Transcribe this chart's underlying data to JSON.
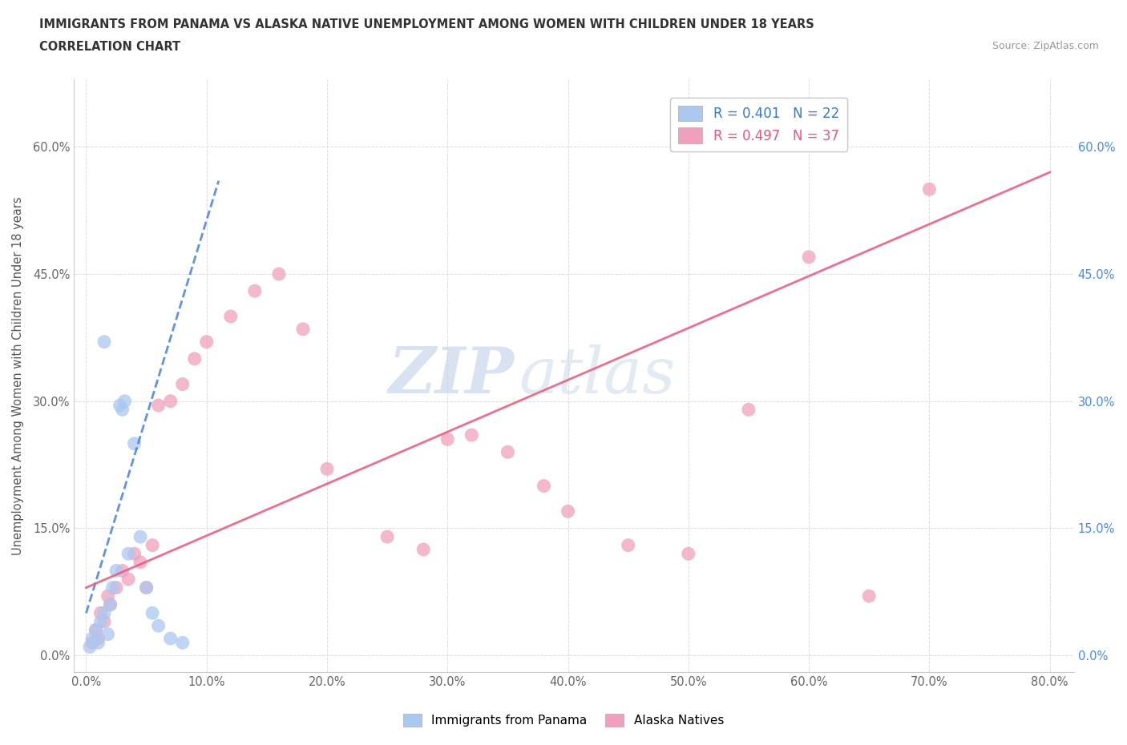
{
  "title_line1": "IMMIGRANTS FROM PANAMA VS ALASKA NATIVE UNEMPLOYMENT AMONG WOMEN WITH CHILDREN UNDER 18 YEARS",
  "title_line2": "CORRELATION CHART",
  "source_text": "Source: ZipAtlas.com",
  "xlabel_ticks": [
    "0.0%",
    "10.0%",
    "20.0%",
    "30.0%",
    "40.0%",
    "50.0%",
    "60.0%",
    "70.0%",
    "80.0%"
  ],
  "xlabel_vals": [
    0,
    10,
    20,
    30,
    40,
    50,
    60,
    70,
    80
  ],
  "ylabel_ticks": [
    "0.0%",
    "15.0%",
    "30.0%",
    "45.0%",
    "60.0%"
  ],
  "ylabel_vals": [
    0,
    15,
    30,
    45,
    60
  ],
  "right_ylabel_ticks": [
    "60.0%",
    "45.0%",
    "30.0%",
    "15.0%",
    "0.0%"
  ],
  "xlim": [
    -1,
    82
  ],
  "ylim": [
    -2,
    68
  ],
  "watermark_zip": "ZIP",
  "watermark_atlas": "atlas",
  "legend_blue_r": "R = 0.401",
  "legend_blue_n": "N = 22",
  "legend_pink_r": "R = 0.497",
  "legend_pink_n": "N = 37",
  "legend_label_blue": "Immigrants from Panama",
  "legend_label_pink": "Alaska Natives",
  "blue_scatter_x": [
    0.3,
    0.5,
    0.8,
    1.0,
    1.2,
    1.5,
    1.8,
    2.0,
    2.2,
    2.5,
    3.0,
    3.2,
    3.5,
    4.0,
    4.5,
    5.0,
    5.5,
    6.0,
    7.0,
    8.0,
    1.5,
    2.8
  ],
  "blue_scatter_y": [
    1.0,
    2.0,
    3.0,
    1.5,
    4.0,
    5.0,
    2.5,
    6.0,
    8.0,
    10.0,
    29.0,
    30.0,
    12.0,
    25.0,
    14.0,
    8.0,
    5.0,
    3.5,
    2.0,
    1.5,
    37.0,
    29.5
  ],
  "pink_scatter_x": [
    0.5,
    0.8,
    1.0,
    1.2,
    1.5,
    1.8,
    2.0,
    2.5,
    3.0,
    3.5,
    4.0,
    4.5,
    5.0,
    5.5,
    6.0,
    7.0,
    8.0,
    9.0,
    10.0,
    12.0,
    14.0,
    16.0,
    18.0,
    20.0,
    25.0,
    28.0,
    30.0,
    32.0,
    35.0,
    38.0,
    40.0,
    45.0,
    50.0,
    55.0,
    60.0,
    65.0,
    70.0
  ],
  "pink_scatter_y": [
    1.5,
    3.0,
    2.0,
    5.0,
    4.0,
    7.0,
    6.0,
    8.0,
    10.0,
    9.0,
    12.0,
    11.0,
    8.0,
    13.0,
    29.5,
    30.0,
    32.0,
    35.0,
    37.0,
    40.0,
    43.0,
    45.0,
    38.5,
    22.0,
    14.0,
    12.5,
    25.5,
    26.0,
    24.0,
    20.0,
    17.0,
    13.0,
    12.0,
    29.0,
    47.0,
    7.0,
    55.0
  ],
  "blue_color": "#aac8f0",
  "pink_color": "#f0a0bc",
  "blue_line_color": "#3377ee",
  "pink_line_color": "#ee5577",
  "background_color": "#ffffff",
  "grid_color": "#dddddd",
  "blue_trendline_x": [
    0,
    11
  ],
  "blue_trendline_y": [
    5.0,
    56.0
  ],
  "pink_trendline_x": [
    0,
    80
  ],
  "pink_trendline_y": [
    8.0,
    57.0
  ]
}
